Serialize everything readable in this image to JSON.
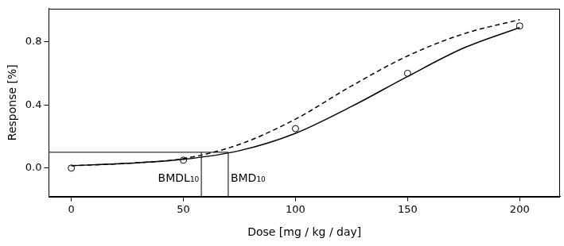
{
  "chart_data": {
    "type": "scatter",
    "x_label": "Dose [mg / kg / day]",
    "y_label": "Response [%]",
    "xlim": [
      -10,
      218
    ],
    "ylim": [
      -0.18,
      1.01
    ],
    "xticks": [
      0,
      50,
      100,
      150,
      200
    ],
    "yticks": [
      {
        "value": 0,
        "label": "0.0"
      },
      0.4,
      0.8
    ],
    "grid": false,
    "series": [
      {
        "type": "scatter",
        "marker": "circle",
        "color": "#000000",
        "x": [
          0,
          50,
          100,
          150,
          200
        ],
        "values": [
          0.0,
          0.05,
          0.25,
          0.6,
          0.9
        ]
      },
      {
        "type": "line",
        "line_style": "solid",
        "color": "#000000",
        "x": [
          0,
          25,
          50,
          75,
          100,
          125,
          150,
          175,
          200
        ],
        "values": [
          0.015,
          0.03,
          0.055,
          0.11,
          0.22,
          0.39,
          0.58,
          0.76,
          0.89
        ]
      },
      {
        "type": "line",
        "line_style": "dashed",
        "color": "#000000",
        "x": [
          0,
          25,
          50,
          75,
          100,
          125,
          150,
          175,
          200
        ],
        "values": [
          0.015,
          0.03,
          0.06,
          0.15,
          0.31,
          0.52,
          0.71,
          0.85,
          0.94
        ]
      }
    ],
    "bmr": 0.1,
    "annotations": [
      {
        "text": "BMDL₁₀",
        "x": 58
      },
      {
        "text": "BMD₁₀",
        "x": 70
      }
    ]
  }
}
